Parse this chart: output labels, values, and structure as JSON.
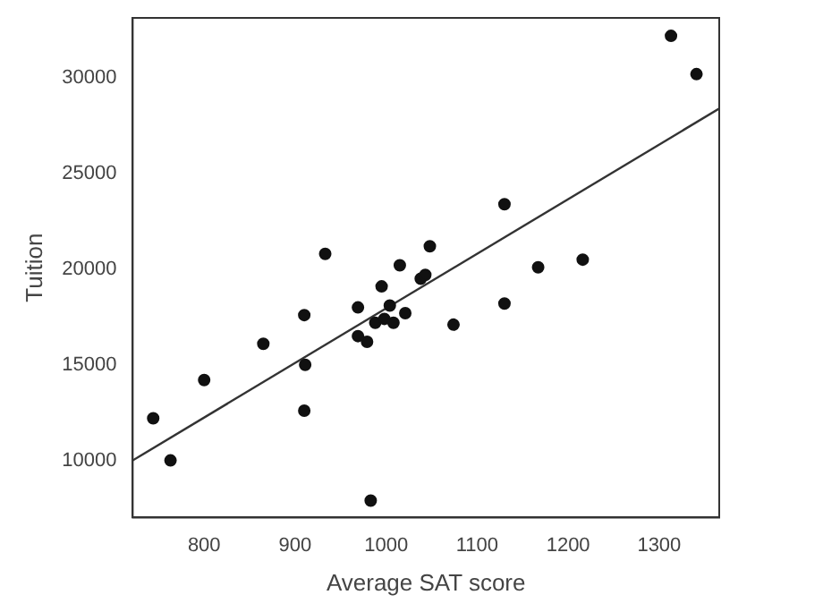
{
  "chart_data": {
    "type": "scatter",
    "xlabel": "Average SAT score",
    "ylabel": "Tuition",
    "xlim": [
      721.5,
      1366
    ],
    "ylim": [
      7014,
      33140
    ],
    "xticks": [
      800,
      900,
      1000,
      1100,
      1200,
      1300
    ],
    "yticks": [
      10000,
      15000,
      20000,
      25000,
      30000
    ],
    "grid": false,
    "legend": false,
    "series": [
      {
        "type": "scatter",
        "marker": "circle",
        "color": "#111111",
        "x": [
          744,
          763,
          800,
          865,
          910,
          911,
          910,
          933,
          969,
          969,
          979,
          988,
          995,
          998,
          1004,
          1008,
          1015,
          1021,
          1038,
          1043,
          1048,
          1074,
          1130,
          1130,
          1167,
          1216,
          1313,
          1341,
          983
        ],
        "values": [
          12200,
          10000,
          14200,
          16100,
          17600,
          15000,
          12600,
          20800,
          18000,
          16500,
          16200,
          17200,
          19100,
          17400,
          18100,
          17200,
          20200,
          17700,
          19500,
          19700,
          21200,
          17100,
          23400,
          18200,
          20100,
          20500,
          32200,
          30200,
          7900
        ]
      },
      {
        "type": "line",
        "marker": "none",
        "color": "#333333",
        "x": [
          721.5,
          1366
        ],
        "values": [
          10000,
          28400
        ]
      }
    ]
  }
}
